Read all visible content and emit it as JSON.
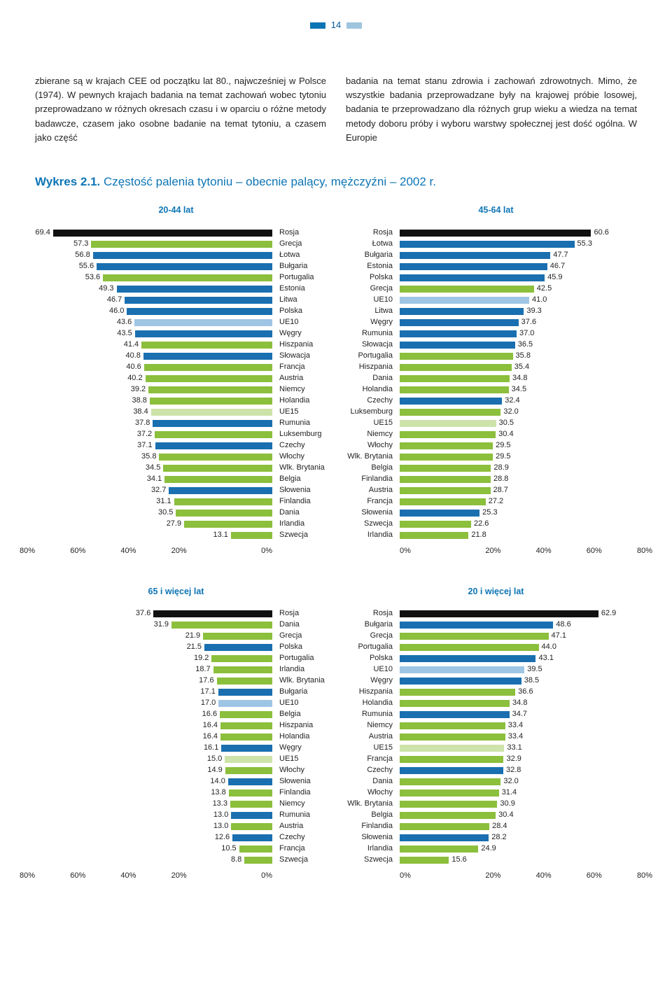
{
  "page_number": "14",
  "text": {
    "col_left": "zbierane są w krajach CEE od początku lat 80., najwcześniej w Polsce (1974). W pewnych krajach badania na temat zachowań wobec tytoniu przeprowadzano w różnych okresach czasu i w oparciu o różne metody badawcze, czasem jako osobne badanie na temat tytoniu, a czasem jako część",
    "col_right": "badania na temat stanu zdrowia i zachowań zdrowotnych. Mimo, że wszystkie badania przeprowadzane były na krajowej próbie losowej, badania te przeprowadzano dla różnych grup wieku a wiedza na temat metody doboru próby i wyboru warstwy społecznej jest dość ogólna. W Europie"
  },
  "figure_title": {
    "num": "Wykres 2.1.",
    "txt": "Częstość palenia tytoniu – obecnie palący, mężczyźni – 2002 r."
  },
  "colors": {
    "blue": "#1a6fb0",
    "green": "#8bbf3c",
    "lightblue": "#9fc5e4",
    "lightgreen": "#cde3a9",
    "black": "#111111"
  },
  "axis_max": 80,
  "axis_ticks": [
    "0%",
    "20%",
    "40%",
    "60%",
    "80%"
  ],
  "panels": {
    "tl": {
      "title": "20-44 lat",
      "side": "left",
      "rows": [
        {
          "label": "Rosja",
          "value": 69.4,
          "color": "black"
        },
        {
          "label": "Grecja",
          "value": 57.3,
          "color": "green"
        },
        {
          "label": "Łotwa",
          "value": 56.8,
          "color": "blue"
        },
        {
          "label": "Bułgaria",
          "value": 55.6,
          "color": "blue"
        },
        {
          "label": "Portugalia",
          "value": 53.6,
          "color": "green"
        },
        {
          "label": "Estonia",
          "value": 49.3,
          "color": "blue"
        },
        {
          "label": "Litwa",
          "value": 46.7,
          "color": "blue"
        },
        {
          "label": "Polska",
          "value": 46.0,
          "color": "blue"
        },
        {
          "label": "UE10",
          "value": 43.6,
          "color": "lightblue"
        },
        {
          "label": "Węgry",
          "value": 43.5,
          "color": "blue"
        },
        {
          "label": "Hiszpania",
          "value": 41.4,
          "color": "green"
        },
        {
          "label": "Słowacja",
          "value": 40.8,
          "color": "blue"
        },
        {
          "label": "Francja",
          "value": 40.6,
          "color": "green"
        },
        {
          "label": "Austria",
          "value": 40.2,
          "color": "green"
        },
        {
          "label": "Niemcy",
          "value": 39.2,
          "color": "green"
        },
        {
          "label": "Holandia",
          "value": 38.8,
          "color": "green"
        },
        {
          "label": "UE15",
          "value": 38.4,
          "color": "lightgreen"
        },
        {
          "label": "Rumunia",
          "value": 37.8,
          "color": "blue"
        },
        {
          "label": "Luksemburg",
          "value": 37.2,
          "color": "green"
        },
        {
          "label": "Czechy",
          "value": 37.1,
          "color": "blue"
        },
        {
          "label": "Włochy",
          "value": 35.8,
          "color": "green"
        },
        {
          "label": "Wlk. Brytania",
          "value": 34.5,
          "color": "green"
        },
        {
          "label": "Belgia",
          "value": 34.1,
          "color": "green"
        },
        {
          "label": "Słowenia",
          "value": 32.7,
          "color": "blue"
        },
        {
          "label": "Finlandia",
          "value": 31.1,
          "color": "green"
        },
        {
          "label": "Dania",
          "value": 30.5,
          "color": "green"
        },
        {
          "label": "Irlandia",
          "value": 27.9,
          "color": "green"
        },
        {
          "label": "Szwecja",
          "value": 13.1,
          "color": "green"
        }
      ]
    },
    "tr": {
      "title": "45-64 lat",
      "side": "right",
      "rows": [
        {
          "label": "Rosja",
          "value": 60.6,
          "color": "black"
        },
        {
          "label": "Łotwa",
          "value": 55.3,
          "color": "blue"
        },
        {
          "label": "Bułgaria",
          "value": 47.7,
          "color": "blue"
        },
        {
          "label": "Estonia",
          "value": 46.7,
          "color": "blue"
        },
        {
          "label": "Polska",
          "value": 45.9,
          "color": "blue"
        },
        {
          "label": "Grecja",
          "value": 42.5,
          "color": "green"
        },
        {
          "label": "UE10",
          "value": 41.0,
          "color": "lightblue"
        },
        {
          "label": "Litwa",
          "value": 39.3,
          "color": "blue"
        },
        {
          "label": "Węgry",
          "value": 37.6,
          "color": "blue"
        },
        {
          "label": "Rumunia",
          "value": 37.0,
          "color": "blue"
        },
        {
          "label": "Słowacja",
          "value": 36.5,
          "color": "blue"
        },
        {
          "label": "Portugalia",
          "value": 35.8,
          "color": "green"
        },
        {
          "label": "Hiszpania",
          "value": 35.4,
          "color": "green"
        },
        {
          "label": "Dania",
          "value": 34.8,
          "color": "green"
        },
        {
          "label": "Holandia",
          "value": 34.5,
          "color": "green"
        },
        {
          "label": "Czechy",
          "value": 32.4,
          "color": "blue"
        },
        {
          "label": "Luksemburg",
          "value": 32.0,
          "color": "green"
        },
        {
          "label": "UE15",
          "value": 30.5,
          "color": "lightgreen"
        },
        {
          "label": "Niemcy",
          "value": 30.4,
          "color": "green"
        },
        {
          "label": "Włochy",
          "value": 29.5,
          "color": "green"
        },
        {
          "label": "Wlk. Brytania",
          "value": 29.5,
          "color": "green"
        },
        {
          "label": "Belgia",
          "value": 28.9,
          "color": "green"
        },
        {
          "label": "Finlandia",
          "value": 28.8,
          "color": "green"
        },
        {
          "label": "Austria",
          "value": 28.7,
          "color": "green"
        },
        {
          "label": "Francja",
          "value": 27.2,
          "color": "green"
        },
        {
          "label": "Słowenia",
          "value": 25.3,
          "color": "blue"
        },
        {
          "label": "Szwecja",
          "value": 22.6,
          "color": "green"
        },
        {
          "label": "Irlandia",
          "value": 21.8,
          "color": "green"
        }
      ]
    },
    "bl": {
      "title": "65 i więcej lat",
      "side": "left",
      "rows": [
        {
          "label": "Rosja",
          "value": 37.6,
          "color": "black"
        },
        {
          "label": "Dania",
          "value": 31.9,
          "color": "green"
        },
        {
          "label": "Grecja",
          "value": 21.9,
          "color": "green"
        },
        {
          "label": "Polska",
          "value": 21.5,
          "color": "blue"
        },
        {
          "label": "Portugalia",
          "value": 19.2,
          "color": "green"
        },
        {
          "label": "Irlandia",
          "value": 18.7,
          "color": "green"
        },
        {
          "label": "Wlk. Brytania",
          "value": 17.6,
          "color": "green"
        },
        {
          "label": "Bułgaria",
          "value": 17.1,
          "color": "blue"
        },
        {
          "label": "UE10",
          "value": 17.0,
          "color": "lightblue"
        },
        {
          "label": "Belgia",
          "value": 16.6,
          "color": "green"
        },
        {
          "label": "Hiszpania",
          "value": 16.4,
          "color": "green"
        },
        {
          "label": "Holandia",
          "value": 16.4,
          "color": "green"
        },
        {
          "label": "Węgry",
          "value": 16.1,
          "color": "blue"
        },
        {
          "label": "UE15",
          "value": 15.0,
          "color": "lightgreen"
        },
        {
          "label": "Włochy",
          "value": 14.9,
          "color": "green"
        },
        {
          "label": "Słowenia",
          "value": 14.0,
          "color": "blue"
        },
        {
          "label": "Finlandia",
          "value": 13.8,
          "color": "green"
        },
        {
          "label": "Niemcy",
          "value": 13.3,
          "color": "green"
        },
        {
          "label": "Rumunia",
          "value": 13.0,
          "color": "blue"
        },
        {
          "label": "Austria",
          "value": 13.0,
          "color": "green"
        },
        {
          "label": "Czechy",
          "value": 12.6,
          "color": "blue"
        },
        {
          "label": "Francja",
          "value": 10.5,
          "color": "green"
        },
        {
          "label": "Szwecja",
          "value": 8.8,
          "color": "green"
        }
      ]
    },
    "br": {
      "title": "20 i więcej lat",
      "side": "right",
      "rows": [
        {
          "label": "Rosja",
          "value": 62.9,
          "color": "black"
        },
        {
          "label": "Bułgaria",
          "value": 48.6,
          "color": "blue"
        },
        {
          "label": "Grecja",
          "value": 47.1,
          "color": "green"
        },
        {
          "label": "Portugalia",
          "value": 44.0,
          "color": "green"
        },
        {
          "label": "Polska",
          "value": 43.1,
          "color": "blue"
        },
        {
          "label": "UE10",
          "value": 39.5,
          "color": "lightblue"
        },
        {
          "label": "Węgry",
          "value": 38.5,
          "color": "blue"
        },
        {
          "label": "Hiszpania",
          "value": 36.6,
          "color": "green"
        },
        {
          "label": "Holandia",
          "value": 34.8,
          "color": "green"
        },
        {
          "label": "Rumunia",
          "value": 34.7,
          "color": "blue"
        },
        {
          "label": "Niemcy",
          "value": 33.4,
          "color": "green"
        },
        {
          "label": "Austria",
          "value": 33.4,
          "color": "green"
        },
        {
          "label": "UE15",
          "value": 33.1,
          "color": "lightgreen"
        },
        {
          "label": "Francja",
          "value": 32.9,
          "color": "green"
        },
        {
          "label": "Czechy",
          "value": 32.8,
          "color": "blue"
        },
        {
          "label": "Dania",
          "value": 32.0,
          "color": "green"
        },
        {
          "label": "Włochy",
          "value": 31.4,
          "color": "green"
        },
        {
          "label": "Wlk. Brytania",
          "value": 30.9,
          "color": "green"
        },
        {
          "label": "Belgia",
          "value": 30.4,
          "color": "green"
        },
        {
          "label": "Finlandia",
          "value": 28.4,
          "color": "green"
        },
        {
          "label": "Słowenia",
          "value": 28.2,
          "color": "blue"
        },
        {
          "label": "Irlandia",
          "value": 24.9,
          "color": "green"
        },
        {
          "label": "Szwecja",
          "value": 15.6,
          "color": "green"
        }
      ]
    }
  }
}
